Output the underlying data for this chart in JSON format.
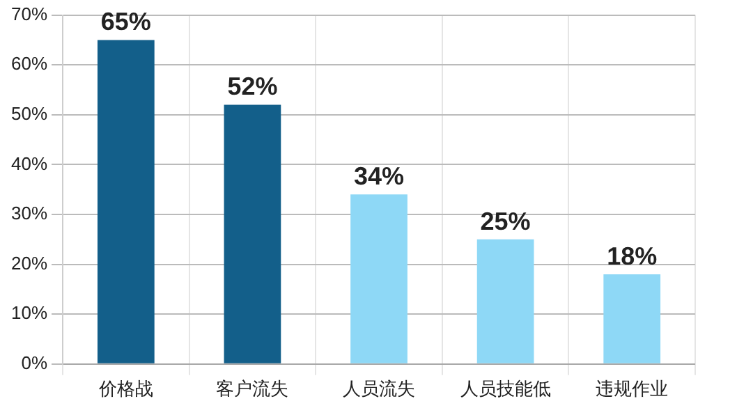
{
  "chart_data": {
    "type": "bar",
    "categories": [
      "价格战",
      "客户流失",
      "人员流失",
      "人员技能低",
      "违规作业"
    ],
    "values": [
      65,
      52,
      34,
      25,
      18
    ],
    "colors": [
      "#135f8a",
      "#135f8a",
      "#8ed8f6",
      "#8ed8f6",
      "#8ed8f6"
    ],
    "value_labels": [
      "65%",
      "52%",
      "34%",
      "25%",
      "18%"
    ],
    "ylim": [
      0,
      70
    ],
    "yticks": [
      {
        "value": 0,
        "label": "0%"
      },
      {
        "value": 10,
        "label": "10%"
      },
      {
        "value": 20,
        "label": "20%"
      },
      {
        "value": 30,
        "label": "30%"
      },
      {
        "value": 40,
        "label": "40%"
      },
      {
        "value": 50,
        "label": "50%"
      },
      {
        "value": 60,
        "label": "60%"
      },
      {
        "value": 70,
        "label": "70%"
      }
    ],
    "grid": true,
    "legend": false
  }
}
